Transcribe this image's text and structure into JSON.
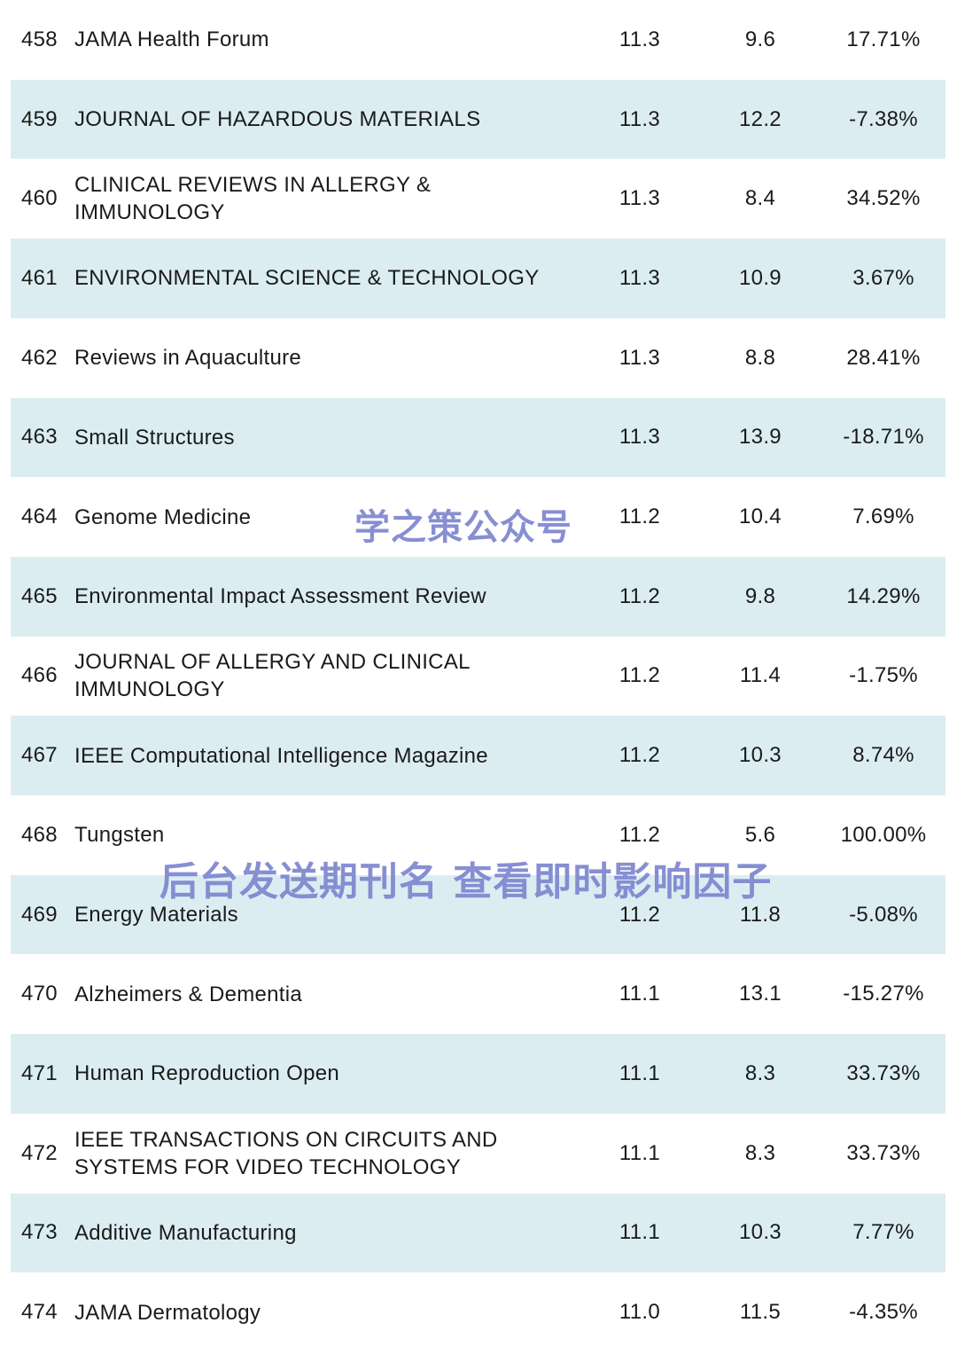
{
  "rows": [
    {
      "rank": "458",
      "name": "JAMA Health Forum",
      "if_current": "11.3",
      "if_previous": "9.6",
      "change": "17.71%"
    },
    {
      "rank": "459",
      "name": "JOURNAL OF HAZARDOUS MATERIALS",
      "if_current": "11.3",
      "if_previous": "12.2",
      "change": "-7.38%"
    },
    {
      "rank": "460",
      "name": "CLINICAL REVIEWS IN ALLERGY & IMMUNOLOGY",
      "if_current": "11.3",
      "if_previous": "8.4",
      "change": "34.52%"
    },
    {
      "rank": "461",
      "name": "ENVIRONMENTAL SCIENCE & TECHNOLOGY",
      "if_current": "11.3",
      "if_previous": "10.9",
      "change": "3.67%"
    },
    {
      "rank": "462",
      "name": "Reviews in Aquaculture",
      "if_current": "11.3",
      "if_previous": "8.8",
      "change": "28.41%"
    },
    {
      "rank": "463",
      "name": "Small Structures",
      "if_current": "11.3",
      "if_previous": "13.9",
      "change": "-18.71%"
    },
    {
      "rank": "464",
      "name": "Genome Medicine",
      "if_current": "11.2",
      "if_previous": "10.4",
      "change": "7.69%"
    },
    {
      "rank": "465",
      "name": "Environmental Impact Assessment Review",
      "if_current": "11.2",
      "if_previous": "9.8",
      "change": "14.29%"
    },
    {
      "rank": "466",
      "name": "JOURNAL OF ALLERGY AND CLINICAL IMMUNOLOGY",
      "if_current": "11.2",
      "if_previous": "11.4",
      "change": "-1.75%"
    },
    {
      "rank": "467",
      "name": "IEEE Computational Intelligence Magazine",
      "if_current": "11.2",
      "if_previous": "10.3",
      "change": "8.74%"
    },
    {
      "rank": "468",
      "name": "Tungsten",
      "if_current": "11.2",
      "if_previous": "5.6",
      "change": "100.00%"
    },
    {
      "rank": "469",
      "name": "Energy Materials",
      "if_current": "11.2",
      "if_previous": "11.8",
      "change": "-5.08%"
    },
    {
      "rank": "470",
      "name": "Alzheimers & Dementia",
      "if_current": "11.1",
      "if_previous": "13.1",
      "change": "-15.27%"
    },
    {
      "rank": "471",
      "name": "Human Reproduction Open",
      "if_current": "11.1",
      "if_previous": "8.3",
      "change": "33.73%"
    },
    {
      "rank": "472",
      "name": "IEEE TRANSACTIONS ON CIRCUITS AND SYSTEMS FOR VIDEO TECHNOLOGY",
      "if_current": "11.1",
      "if_previous": "8.3",
      "change": "33.73%"
    },
    {
      "rank": "473",
      "name": "Additive Manufacturing",
      "if_current": "11.1",
      "if_previous": "10.3",
      "change": "7.77%"
    },
    {
      "rank": "474",
      "name": "JAMA Dermatology",
      "if_current": "11.0",
      "if_previous": "11.5",
      "change": "-4.35%"
    }
  ],
  "watermarks": {
    "account": "学之策公众号",
    "hint": "后台发送期刊名 查看即时影响因子"
  },
  "colors": {
    "row_shade": "#dcedf2",
    "watermark": "#7d86cf"
  }
}
